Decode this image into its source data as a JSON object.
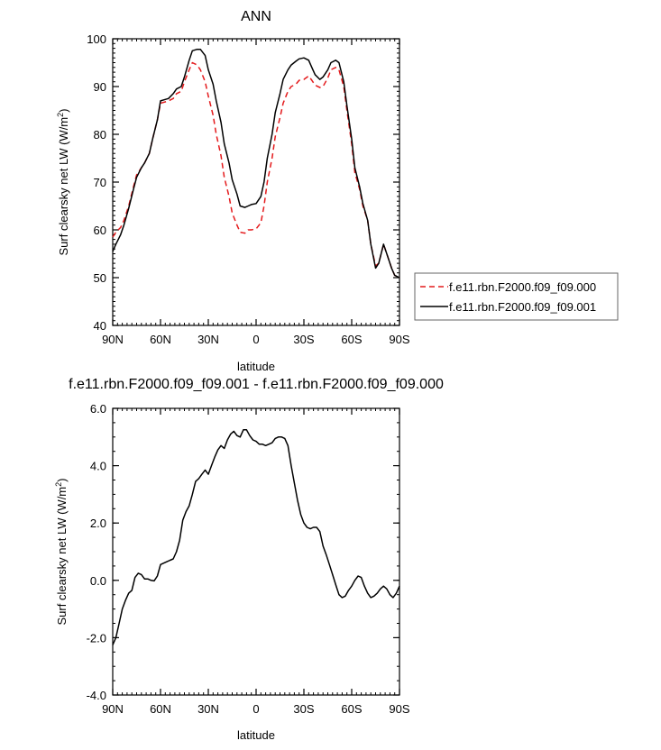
{
  "chart_data": [
    {
      "type": "line",
      "title": "ANN",
      "xlabel": "latitude",
      "ylabel": "Surf clearsky net LW (W/m",
      "ylabel_sup": "2",
      "ylabel_close": ")",
      "x_ticklabels": [
        "90N",
        "60N",
        "30N",
        "0",
        "30S",
        "60S",
        "90S"
      ],
      "y_ticklabels": [
        "40",
        "50",
        "60",
        "70",
        "80",
        "90",
        "100"
      ],
      "xlim": [
        -90,
        90
      ],
      "ylim": [
        40,
        100
      ],
      "legend_position": "right",
      "series": [
        {
          "name": "f.e11.rbn.F2000.f09_f09.000",
          "color": "#e41a1c",
          "style": "dashed",
          "x": [
            -90,
            -88,
            -85,
            -83,
            -80,
            -77,
            -75,
            -72,
            -70,
            -67,
            -65,
            -62,
            -60,
            -57,
            -55,
            -52,
            -50,
            -47,
            -45,
            -42,
            -40,
            -37,
            -35,
            -32,
            -30,
            -27,
            -25,
            -22,
            -20,
            -17,
            -15,
            -12,
            -10,
            -7,
            -5,
            -3,
            0,
            3,
            5,
            7,
            10,
            12,
            15,
            17,
            20,
            22,
            25,
            27,
            30,
            33,
            35,
            37,
            40,
            42,
            45,
            47,
            50,
            52,
            55,
            57,
            60,
            62,
            65,
            67,
            70,
            72,
            75,
            77,
            80,
            82,
            85,
            87,
            90
          ],
          "y": [
            58.5,
            59.5,
            60.5,
            62,
            65,
            69,
            71.5,
            73,
            74,
            76,
            79,
            83,
            86.5,
            86.8,
            87,
            87.5,
            88.5,
            89,
            91,
            93.5,
            95,
            94.5,
            93.5,
            91,
            88,
            84,
            80,
            75.5,
            71,
            67,
            63.5,
            61,
            59.5,
            59.3,
            60,
            60,
            60.2,
            61.5,
            65,
            70,
            75,
            79.5,
            83.5,
            86.5,
            89,
            90,
            90.5,
            91.3,
            91.5,
            92.2,
            91.3,
            90.3,
            89.8,
            90,
            91.8,
            93.5,
            94,
            93.5,
            90,
            85,
            78,
            72,
            68.5,
            65,
            62,
            57,
            52.5,
            53,
            57,
            55,
            52,
            50.5,
            50
          ]
        },
        {
          "name": "f.e11.rbn.F2000.f09_f09.001",
          "color": "#000000",
          "style": "solid",
          "x": [
            -90,
            -88,
            -85,
            -83,
            -80,
            -77,
            -75,
            -72,
            -70,
            -67,
            -65,
            -62,
            -60,
            -57,
            -55,
            -52,
            -50,
            -47,
            -45,
            -42,
            -40,
            -37,
            -35,
            -32,
            -30,
            -27,
            -25,
            -22,
            -20,
            -17,
            -15,
            -12,
            -10,
            -7,
            -5,
            -3,
            0,
            3,
            5,
            7,
            10,
            12,
            15,
            17,
            20,
            22,
            25,
            27,
            30,
            33,
            35,
            37,
            40,
            42,
            45,
            47,
            50,
            52,
            55,
            57,
            60,
            62,
            65,
            67,
            70,
            72,
            75,
            77,
            80,
            82,
            85,
            87,
            90
          ],
          "y": [
            55.5,
            57,
            59,
            61,
            64.5,
            68.5,
            71,
            73,
            74,
            76,
            79,
            83,
            87,
            87.3,
            87.5,
            88.5,
            89.5,
            90,
            92,
            95.5,
            97.5,
            97.8,
            97.8,
            96.5,
            93.5,
            90.5,
            87,
            82.5,
            78,
            74,
            70.5,
            67.5,
            65,
            64.7,
            65,
            65.3,
            65.5,
            67,
            70,
            75,
            80,
            84.5,
            88.5,
            91.5,
            93.5,
            94.5,
            95.3,
            95.8,
            96,
            95.5,
            94,
            92.5,
            91.5,
            92,
            93.5,
            95,
            95.5,
            95,
            91,
            86,
            79,
            73,
            69,
            65.5,
            62,
            57,
            52,
            53,
            57,
            55,
            52,
            50.5,
            50
          ]
        }
      ]
    },
    {
      "type": "line",
      "title": "f.e11.rbn.F2000.f09_f09.001 - f.e11.rbn.F2000.f09_f09.000",
      "xlabel": "latitude",
      "ylabel": "Surf clearsky net LW (W/m",
      "ylabel_sup": "2",
      "ylabel_close": ")",
      "x_ticklabels": [
        "90N",
        "60N",
        "30N",
        "0",
        "30S",
        "60S",
        "90S"
      ],
      "y_ticklabels": [
        "-4.0",
        "-2.0",
        "0.0",
        "2.0",
        "4.0",
        "6.0"
      ],
      "xlim": [
        -90,
        90
      ],
      "ylim": [
        -4,
        6
      ],
      "series": [
        {
          "color": "#000000",
          "style": "solid",
          "x": [
            -90,
            -88,
            -86,
            -84,
            -82,
            -80,
            -78,
            -76,
            -74,
            -72,
            -70,
            -68,
            -66,
            -64,
            -62,
            -60,
            -58,
            -56,
            -54,
            -52,
            -50,
            -48,
            -46,
            -44,
            -42,
            -40,
            -38,
            -36,
            -34,
            -32,
            -30,
            -28,
            -26,
            -24,
            -22,
            -20,
            -18,
            -16,
            -14,
            -12,
            -10,
            -8,
            -6,
            -4,
            -2,
            0,
            2,
            4,
            6,
            8,
            10,
            12,
            14,
            16,
            18,
            20,
            22,
            24,
            26,
            28,
            30,
            32,
            34,
            36,
            38,
            40,
            42,
            44,
            46,
            48,
            50,
            52,
            54,
            56,
            58,
            60,
            62,
            64,
            66,
            68,
            70,
            72,
            74,
            76,
            78,
            80,
            82,
            84,
            86,
            88,
            90
          ],
          "y": [
            -2.25,
            -2.0,
            -1.5,
            -1.0,
            -0.7,
            -0.45,
            -0.35,
            0.1,
            0.25,
            0.2,
            0.05,
            0.05,
            0.0,
            -0.02,
            0.15,
            0.55,
            0.6,
            0.65,
            0.7,
            0.75,
            1.0,
            1.4,
            2.1,
            2.4,
            2.6,
            3.0,
            3.45,
            3.55,
            3.7,
            3.85,
            3.7,
            4.0,
            4.3,
            4.55,
            4.7,
            4.6,
            4.9,
            5.1,
            5.2,
            5.05,
            5.0,
            5.25,
            5.25,
            5.05,
            4.9,
            4.85,
            4.75,
            4.75,
            4.7,
            4.75,
            4.8,
            4.95,
            5.0,
            5.0,
            4.95,
            4.7,
            4.0,
            3.4,
            2.8,
            2.3,
            2.0,
            1.85,
            1.8,
            1.85,
            1.85,
            1.7,
            1.2,
            0.9,
            0.55,
            0.2,
            -0.15,
            -0.5,
            -0.6,
            -0.55,
            -0.35,
            -0.2,
            0.0,
            0.15,
            0.1,
            -0.2,
            -0.45,
            -0.6,
            -0.55,
            -0.45,
            -0.3,
            -0.2,
            -0.3,
            -0.5,
            -0.6,
            -0.45,
            -0.2
          ]
        }
      ]
    }
  ]
}
